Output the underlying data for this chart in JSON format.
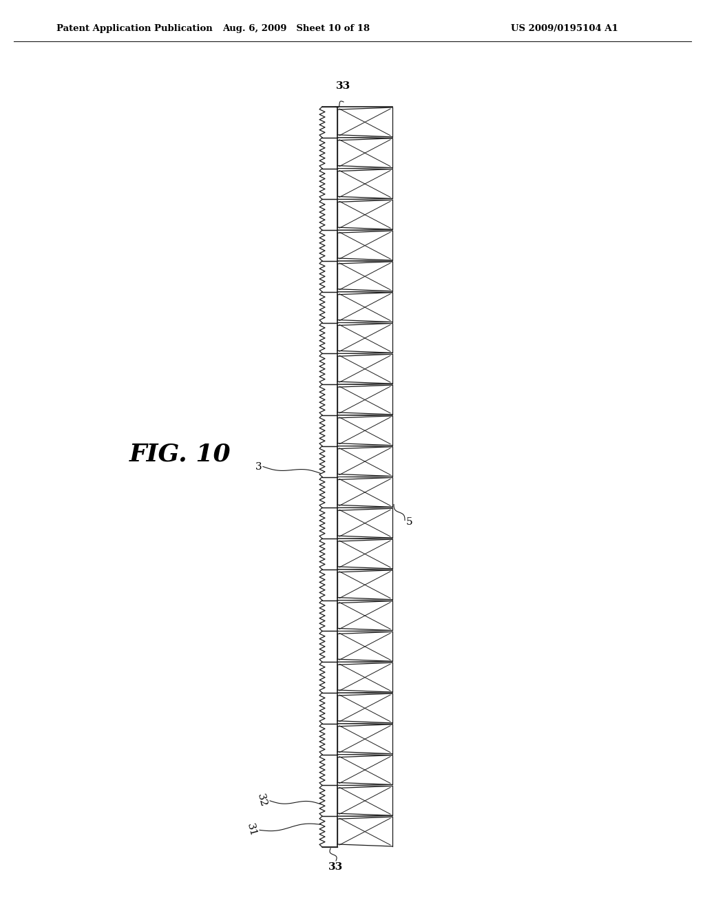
{
  "header_left": "Patent Application Publication",
  "header_center": "Aug. 6, 2009   Sheet 10 of 18",
  "header_right": "US 2009/0195104 A1",
  "fig_label": "FIG. 10",
  "label_33_top": "33",
  "label_3": "3",
  "label_5": "5",
  "label_32": "32",
  "label_31": "31",
  "label_33_bot": "33",
  "num_teeth": 24,
  "bg_color": "#ffffff",
  "line_color": "#1a1a1a"
}
